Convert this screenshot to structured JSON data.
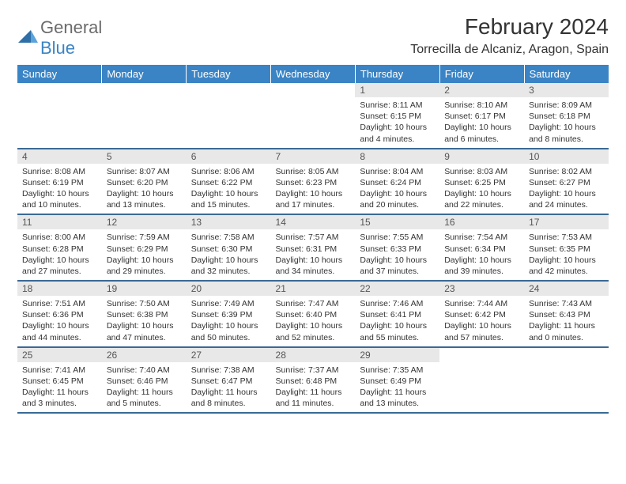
{
  "logo": {
    "text1": "General",
    "text2": "Blue"
  },
  "title": "February 2024",
  "location": "Torrecilla de Alcaniz, Aragon, Spain",
  "colors": {
    "header_bg": "#3a84c5",
    "header_text": "#ffffff",
    "daynum_bg": "#e8e8e8",
    "row_border": "#3a6a95",
    "logo_gray": "#6b6b6b",
    "logo_blue": "#3a84c5"
  },
  "weekdays": [
    "Sunday",
    "Monday",
    "Tuesday",
    "Wednesday",
    "Thursday",
    "Friday",
    "Saturday"
  ],
  "rows": [
    [
      null,
      null,
      null,
      null,
      {
        "n": "1",
        "sr": "8:11 AM",
        "ss": "6:15 PM",
        "dl": "10 hours and 4 minutes."
      },
      {
        "n": "2",
        "sr": "8:10 AM",
        "ss": "6:17 PM",
        "dl": "10 hours and 6 minutes."
      },
      {
        "n": "3",
        "sr": "8:09 AM",
        "ss": "6:18 PM",
        "dl": "10 hours and 8 minutes."
      }
    ],
    [
      {
        "n": "4",
        "sr": "8:08 AM",
        "ss": "6:19 PM",
        "dl": "10 hours and 10 minutes."
      },
      {
        "n": "5",
        "sr": "8:07 AM",
        "ss": "6:20 PM",
        "dl": "10 hours and 13 minutes."
      },
      {
        "n": "6",
        "sr": "8:06 AM",
        "ss": "6:22 PM",
        "dl": "10 hours and 15 minutes."
      },
      {
        "n": "7",
        "sr": "8:05 AM",
        "ss": "6:23 PM",
        "dl": "10 hours and 17 minutes."
      },
      {
        "n": "8",
        "sr": "8:04 AM",
        "ss": "6:24 PM",
        "dl": "10 hours and 20 minutes."
      },
      {
        "n": "9",
        "sr": "8:03 AM",
        "ss": "6:25 PM",
        "dl": "10 hours and 22 minutes."
      },
      {
        "n": "10",
        "sr": "8:02 AM",
        "ss": "6:27 PM",
        "dl": "10 hours and 24 minutes."
      }
    ],
    [
      {
        "n": "11",
        "sr": "8:00 AM",
        "ss": "6:28 PM",
        "dl": "10 hours and 27 minutes."
      },
      {
        "n": "12",
        "sr": "7:59 AM",
        "ss": "6:29 PM",
        "dl": "10 hours and 29 minutes."
      },
      {
        "n": "13",
        "sr": "7:58 AM",
        "ss": "6:30 PM",
        "dl": "10 hours and 32 minutes."
      },
      {
        "n": "14",
        "sr": "7:57 AM",
        "ss": "6:31 PM",
        "dl": "10 hours and 34 minutes."
      },
      {
        "n": "15",
        "sr": "7:55 AM",
        "ss": "6:33 PM",
        "dl": "10 hours and 37 minutes."
      },
      {
        "n": "16",
        "sr": "7:54 AM",
        "ss": "6:34 PM",
        "dl": "10 hours and 39 minutes."
      },
      {
        "n": "17",
        "sr": "7:53 AM",
        "ss": "6:35 PM",
        "dl": "10 hours and 42 minutes."
      }
    ],
    [
      {
        "n": "18",
        "sr": "7:51 AM",
        "ss": "6:36 PM",
        "dl": "10 hours and 44 minutes."
      },
      {
        "n": "19",
        "sr": "7:50 AM",
        "ss": "6:38 PM",
        "dl": "10 hours and 47 minutes."
      },
      {
        "n": "20",
        "sr": "7:49 AM",
        "ss": "6:39 PM",
        "dl": "10 hours and 50 minutes."
      },
      {
        "n": "21",
        "sr": "7:47 AM",
        "ss": "6:40 PM",
        "dl": "10 hours and 52 minutes."
      },
      {
        "n": "22",
        "sr": "7:46 AM",
        "ss": "6:41 PM",
        "dl": "10 hours and 55 minutes."
      },
      {
        "n": "23",
        "sr": "7:44 AM",
        "ss": "6:42 PM",
        "dl": "10 hours and 57 minutes."
      },
      {
        "n": "24",
        "sr": "7:43 AM",
        "ss": "6:43 PM",
        "dl": "11 hours and 0 minutes."
      }
    ],
    [
      {
        "n": "25",
        "sr": "7:41 AM",
        "ss": "6:45 PM",
        "dl": "11 hours and 3 minutes."
      },
      {
        "n": "26",
        "sr": "7:40 AM",
        "ss": "6:46 PM",
        "dl": "11 hours and 5 minutes."
      },
      {
        "n": "27",
        "sr": "7:38 AM",
        "ss": "6:47 PM",
        "dl": "11 hours and 8 minutes."
      },
      {
        "n": "28",
        "sr": "7:37 AM",
        "ss": "6:48 PM",
        "dl": "11 hours and 11 minutes."
      },
      {
        "n": "29",
        "sr": "7:35 AM",
        "ss": "6:49 PM",
        "dl": "11 hours and 13 minutes."
      },
      null,
      null
    ]
  ],
  "labels": {
    "sunrise": "Sunrise: ",
    "sunset": "Sunset: ",
    "daylight": "Daylight: "
  }
}
